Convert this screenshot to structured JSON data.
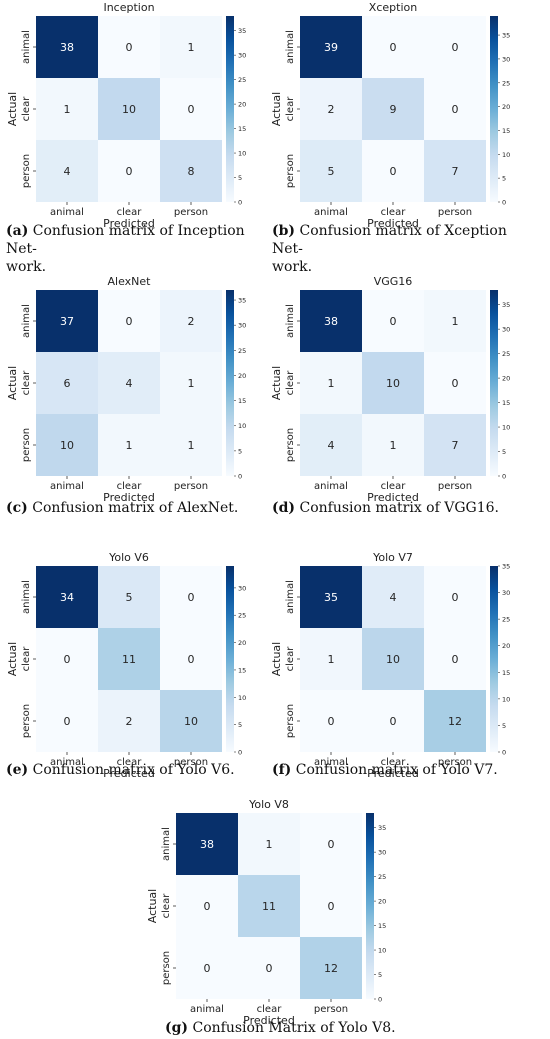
{
  "chart_data": [
    {
      "type": "heatmap",
      "title": "Inception",
      "xlabel": "Predicted",
      "ylabel": "Actual",
      "x_categories": [
        "animal",
        "clear",
        "person"
      ],
      "y_categories": [
        "animal",
        "clear",
        "person"
      ],
      "values": [
        [
          38,
          0,
          1
        ],
        [
          1,
          10,
          0
        ],
        [
          4,
          0,
          8
        ]
      ],
      "colorbar_ticks": [
        0,
        5,
        10,
        15,
        20,
        25,
        30,
        35
      ],
      "vmax": 38,
      "colormap": "Blues",
      "caption_label": "(a)",
      "caption_text": "Confusion matrix of Inception Net-",
      "caption_text2": "work."
    },
    {
      "type": "heatmap",
      "title": "Xception",
      "xlabel": "Predicted",
      "ylabel": "Actual",
      "x_categories": [
        "animal",
        "clear",
        "person"
      ],
      "y_categories": [
        "animal",
        "clear",
        "person"
      ],
      "values": [
        [
          39,
          0,
          0
        ],
        [
          2,
          9,
          0
        ],
        [
          5,
          0,
          7
        ]
      ],
      "colorbar_ticks": [
        0,
        5,
        10,
        15,
        20,
        25,
        30,
        35
      ],
      "vmax": 39,
      "colormap": "Blues",
      "caption_label": "(b)",
      "caption_text": "Confusion matrix of Xception Net-",
      "caption_text2": "work."
    },
    {
      "type": "heatmap",
      "title": "AlexNet",
      "xlabel": "Predicted",
      "ylabel": "Actual",
      "x_categories": [
        "animal",
        "clear",
        "person"
      ],
      "y_categories": [
        "animal",
        "clear",
        "person"
      ],
      "values": [
        [
          37,
          0,
          2
        ],
        [
          6,
          4,
          1
        ],
        [
          10,
          1,
          1
        ]
      ],
      "colorbar_ticks": [
        0,
        5,
        10,
        15,
        20,
        25,
        30,
        35
      ],
      "vmax": 37,
      "colormap": "Blues",
      "caption_label": "(c)",
      "caption_text": "Confusion matrix of AlexNet.",
      "caption_text2": ""
    },
    {
      "type": "heatmap",
      "title": "VGG16",
      "xlabel": "Predicted",
      "ylabel": "Actual",
      "x_categories": [
        "animal",
        "clear",
        "person"
      ],
      "y_categories": [
        "animal",
        "clear",
        "person"
      ],
      "values": [
        [
          38,
          0,
          1
        ],
        [
          1,
          10,
          0
        ],
        [
          4,
          1,
          7
        ]
      ],
      "colorbar_ticks": [
        0,
        5,
        10,
        15,
        20,
        25,
        30,
        35
      ],
      "vmax": 38,
      "colormap": "Blues",
      "caption_label": "(d)",
      "caption_text": "Confusion matrix of VGG16.",
      "caption_text2": ""
    },
    {
      "type": "heatmap",
      "title": "Yolo V6",
      "xlabel": "Predicted",
      "ylabel": "Actual",
      "x_categories": [
        "animal",
        "clear",
        "person"
      ],
      "y_categories": [
        "animal",
        "clear",
        "person"
      ],
      "values": [
        [
          34,
          5,
          0
        ],
        [
          0,
          11,
          0
        ],
        [
          0,
          2,
          10
        ]
      ],
      "colorbar_ticks": [
        0,
        5,
        10,
        15,
        20,
        25,
        30
      ],
      "vmax": 34,
      "colormap": "Blues",
      "caption_label": "(e)",
      "caption_text": "Confusion matrix of Yolo V6.",
      "caption_text2": ""
    },
    {
      "type": "heatmap",
      "title": "Yolo V7",
      "xlabel": "Predicted",
      "ylabel": "Actual",
      "x_categories": [
        "animal",
        "clear",
        "person"
      ],
      "y_categories": [
        "animal",
        "clear",
        "person"
      ],
      "values": [
        [
          35,
          4,
          0
        ],
        [
          1,
          10,
          0
        ],
        [
          0,
          0,
          12
        ]
      ],
      "colorbar_ticks": [
        0,
        5,
        10,
        15,
        20,
        25,
        30,
        35
      ],
      "vmax": 35,
      "colormap": "Blues",
      "caption_label": "(f)",
      "caption_text": "Confusion matrix of Yolo V7.",
      "caption_text2": ""
    },
    {
      "type": "heatmap",
      "title": "Yolo V8",
      "xlabel": "Predicted",
      "ylabel": "Actual",
      "x_categories": [
        "animal",
        "clear",
        "person"
      ],
      "y_categories": [
        "animal",
        "clear",
        "person"
      ],
      "values": [
        [
          38,
          1,
          0
        ],
        [
          0,
          11,
          0
        ],
        [
          0,
          0,
          12
        ]
      ],
      "colorbar_ticks": [
        0,
        5,
        10,
        15,
        20,
        25,
        30,
        35
      ],
      "vmax": 38,
      "colormap": "Blues",
      "caption_label": "(g)",
      "caption_text": "Confusion Matrix of Yolo V8.",
      "caption_text2": ""
    }
  ]
}
